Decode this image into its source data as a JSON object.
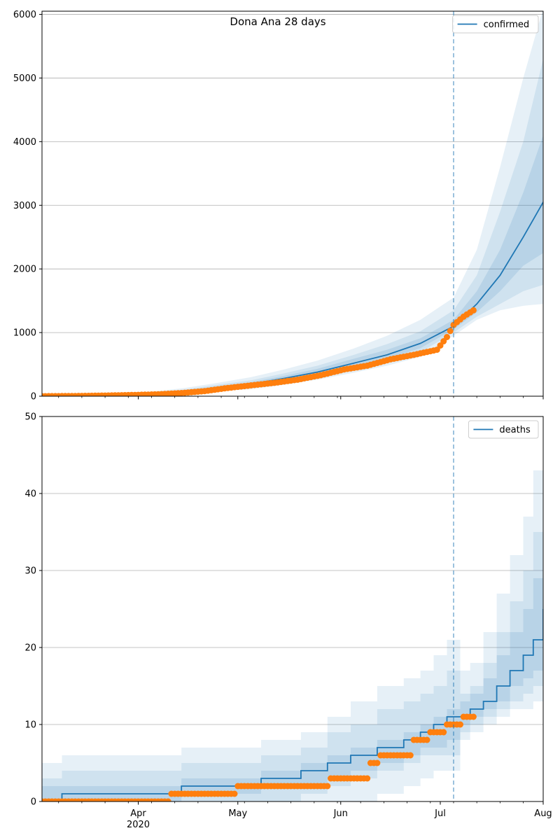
{
  "chart_data": [
    {
      "type": "line",
      "title": "Dona Ana 28 days",
      "xlabel": "",
      "ylabel": "",
      "x_range": [
        "2020-03-03",
        "2020-08-01"
      ],
      "ylim": [
        0,
        6050
      ],
      "yticks": [
        0,
        1000,
        2000,
        3000,
        4000,
        5000,
        6000
      ],
      "grid": "horizontal",
      "legend_position": "top-right",
      "forecast_start": "2020-07-05",
      "series": [
        {
          "name": "confirmed",
          "role": "model",
          "color": "#1f77b4",
          "x": [
            "2020-03-03",
            "2020-03-15",
            "2020-03-25",
            "2020-04-05",
            "2020-04-15",
            "2020-04-25",
            "2020-05-05",
            "2020-05-15",
            "2020-05-25",
            "2020-06-05",
            "2020-06-15",
            "2020-06-25",
            "2020-07-05",
            "2020-07-12",
            "2020-07-19",
            "2020-07-26",
            "2020-08-01"
          ],
          "values": [
            0,
            5,
            15,
            35,
            70,
            130,
            190,
            280,
            380,
            520,
            650,
            830,
            1100,
            1450,
            1900,
            2500,
            3050
          ],
          "bands": [
            {
              "lower": [
                0,
                0,
                5,
                15,
                35,
                80,
                110,
                180,
                260,
                370,
                480,
                620,
                950,
                1200,
                1350,
                1420,
                1450
              ],
              "upper": [
                10,
                20,
                40,
                70,
                130,
                210,
                300,
                420,
                560,
                750,
                950,
                1200,
                1550,
                2300,
                3600,
                5000,
                6100
              ]
            },
            {
              "lower": [
                0,
                2,
                8,
                22,
                50,
                100,
                140,
                210,
                300,
                420,
                540,
                690,
                1000,
                1250,
                1450,
                1650,
                1750
              ],
              "upper": [
                6,
                14,
                30,
                55,
                105,
                180,
                250,
                360,
                480,
                650,
                820,
                1020,
                1350,
                1900,
                2900,
                4000,
                5300
              ]
            },
            {
              "lower": [
                0,
                3,
                11,
                28,
                60,
                115,
                165,
                245,
                335,
                470,
                590,
                755,
                1050,
                1320,
                1650,
                2050,
                2250
              ],
              "upper": [
                3,
                9,
                22,
                45,
                90,
                155,
                220,
                320,
                430,
                590,
                730,
                910,
                1200,
                1650,
                2300,
                3200,
                4100
              ]
            }
          ]
        },
        {
          "name": "",
          "role": "observed",
          "color": "#ff7f0e",
          "x": [
            "2020-03-03",
            "2020-03-10",
            "2020-03-17",
            "2020-03-24",
            "2020-03-31",
            "2020-04-07",
            "2020-04-14",
            "2020-04-21",
            "2020-04-28",
            "2020-05-05",
            "2020-05-12",
            "2020-05-19",
            "2020-05-26",
            "2020-06-02",
            "2020-06-09",
            "2020-06-16",
            "2020-06-23",
            "2020-06-30",
            "2020-07-03",
            "2020-07-05",
            "2020-07-08",
            "2020-07-11"
          ],
          "values": [
            0,
            2,
            6,
            12,
            20,
            30,
            50,
            80,
            130,
            170,
            210,
            260,
            330,
            420,
            480,
            580,
            650,
            730,
            930,
            1120,
            1250,
            1350
          ]
        }
      ]
    },
    {
      "type": "line",
      "title": "",
      "xlabel": "",
      "ylabel": "",
      "x_range": [
        "2020-03-03",
        "2020-08-01"
      ],
      "ylim": [
        0,
        50
      ],
      "yticks": [
        0,
        10,
        20,
        30,
        40,
        50
      ],
      "xticks": [
        {
          "date": "2020-04-01",
          "label": "Apr",
          "sublabel": "2020"
        },
        {
          "date": "2020-05-01",
          "label": "May",
          "sublabel": ""
        },
        {
          "date": "2020-06-01",
          "label": "Jun",
          "sublabel": ""
        },
        {
          "date": "2020-07-01",
          "label": "Jul",
          "sublabel": ""
        },
        {
          "date": "2020-08-01",
          "label": "Aug",
          "sublabel": ""
        }
      ],
      "grid": "horizontal",
      "legend_position": "top-right",
      "forecast_start": "2020-07-05",
      "series": [
        {
          "name": "deaths",
          "role": "model",
          "color": "#1f77b4",
          "step": true,
          "x": [
            "2020-03-03",
            "2020-03-09",
            "2020-04-14",
            "2020-05-01",
            "2020-05-08",
            "2020-05-20",
            "2020-05-28",
            "2020-06-04",
            "2020-06-12",
            "2020-06-20",
            "2020-06-25",
            "2020-06-29",
            "2020-07-03",
            "2020-07-07",
            "2020-07-10",
            "2020-07-14",
            "2020-07-18",
            "2020-07-22",
            "2020-07-26",
            "2020-07-29",
            "2020-08-01"
          ],
          "values": [
            0,
            1,
            2,
            2,
            3,
            4,
            5,
            6,
            7,
            8,
            9,
            10,
            11,
            11,
            12,
            13,
            15,
            17,
            19,
            21,
            25
          ],
          "bands": [
            {
              "lower": [
                0,
                0,
                0,
                0,
                0,
                0,
                0,
                0,
                1,
                2,
                3,
                4,
                4,
                8,
                9,
                10,
                11,
                12,
                12,
                13,
                13
              ],
              "upper": [
                5,
                6,
                7,
                7,
                8,
                9,
                11,
                13,
                15,
                16,
                17,
                19,
                21,
                17,
                18,
                22,
                27,
                32,
                37,
                43,
                50
              ]
            },
            {
              "lower": [
                0,
                0,
                0,
                0,
                0,
                1,
                2,
                3,
                4,
                5,
                6,
                6,
                6,
                9,
                10,
                11,
                12,
                13,
                14,
                15,
                15
              ],
              "upper": [
                3,
                4,
                5,
                5,
                6,
                7,
                9,
                10,
                12,
                13,
                14,
                15,
                17,
                14,
                15,
                18,
                22,
                26,
                30,
                35,
                42
              ]
            },
            {
              "lower": [
                0,
                0,
                1,
                1,
                2,
                2,
                3,
                4,
                5,
                6,
                7,
                7,
                8,
                10,
                11,
                12,
                13,
                15,
                16,
                17,
                18
              ],
              "upper": [
                2,
                2,
                3,
                3,
                4,
                5,
                6,
                7,
                8,
                9,
                10,
                11,
                12,
                13,
                14,
                16,
                19,
                22,
                25,
                29,
                33
              ]
            }
          ]
        },
        {
          "name": "",
          "role": "observed",
          "color": "#ff7f0e",
          "step": true,
          "x": [
            "2020-03-03",
            "2020-04-11",
            "2020-05-01",
            "2020-05-29",
            "2020-06-10",
            "2020-06-13",
            "2020-06-23",
            "2020-06-28",
            "2020-07-03",
            "2020-07-05",
            "2020-07-08",
            "2020-07-11"
          ],
          "values": [
            0,
            1,
            2,
            3,
            5,
            6,
            8,
            9,
            10,
            10,
            11,
            11
          ]
        }
      ]
    }
  ]
}
